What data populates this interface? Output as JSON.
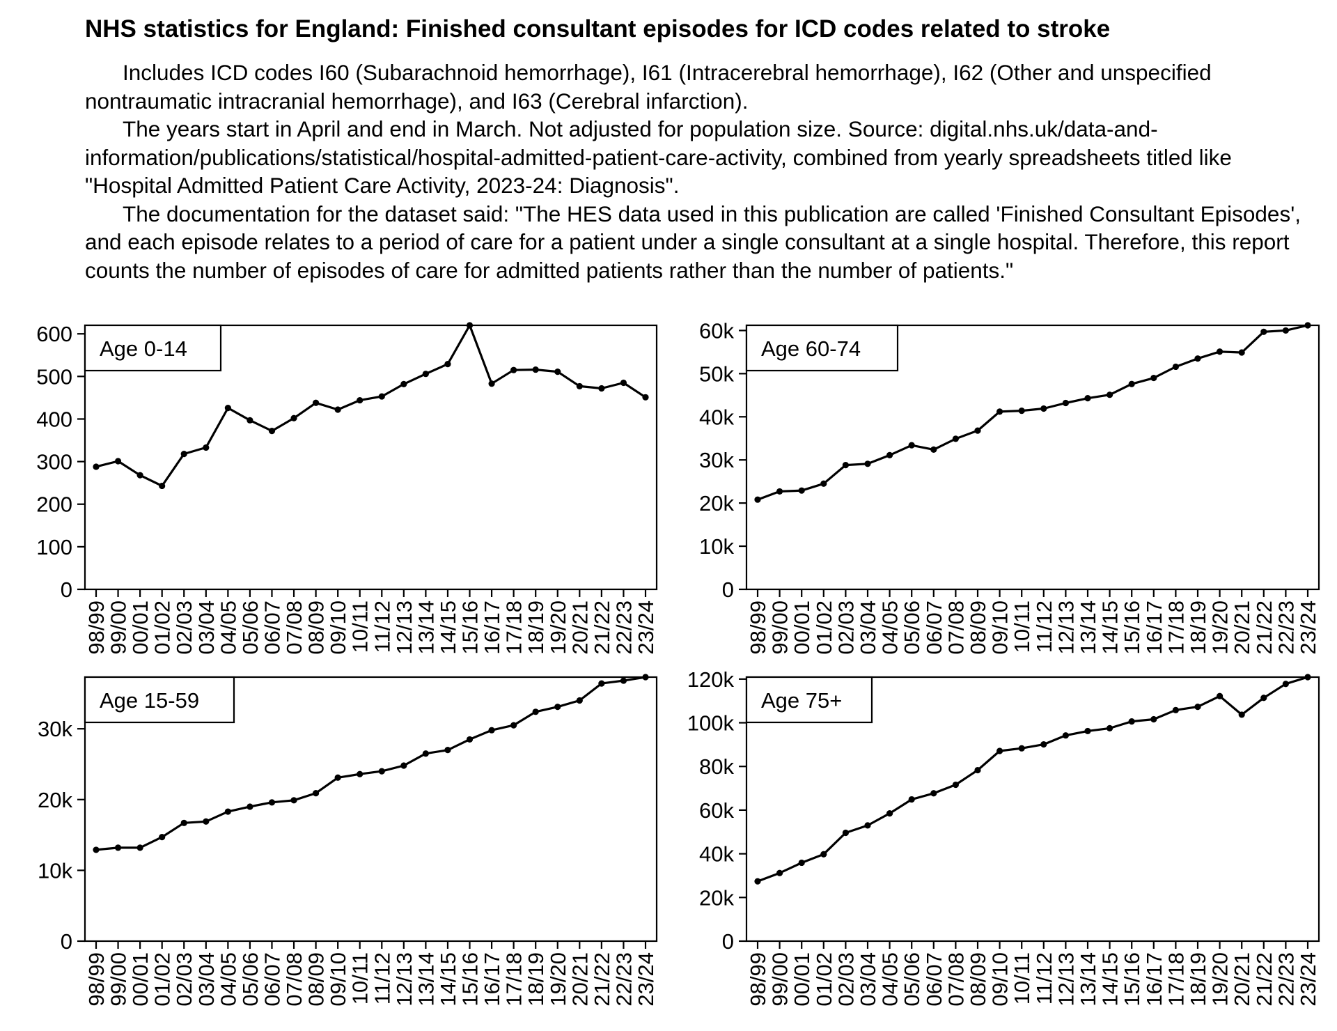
{
  "title": "NHS statistics for England: Finished consultant episodes for ICD codes related to stroke",
  "description": [
    "Includes ICD codes I60 (Subarachnoid hemorrhage), I61 (Intracerebral hemorrhage), I62 (Other and unspecified nontraumatic intracranial hemorrhage), and I63 (Cerebral infarction).",
    "The years start in April and end in March. Not adjusted for population size. Source: digital.nhs.uk/data-and-information/publications/statistical/hospital-admitted-patient-care-activity, combined from yearly spreadsheets titled like \"Hospital Admitted Patient Care Activity, 2023-24: Diagnosis\".",
    "The documentation for the dataset said: \"The HES data used in this publication are called 'Finished Consultant Episodes', and each episode relates to a period of care for a patient under a single consultant at a single hospital. Therefore, this report counts the number of episodes of care for admitted patients rather than the number of patients.\""
  ],
  "chart_data": [
    {
      "type": "line",
      "title": "Age 0-14",
      "categories": [
        "98/99",
        "99/00",
        "00/01",
        "01/02",
        "02/03",
        "03/04",
        "04/05",
        "05/06",
        "06/07",
        "07/08",
        "08/09",
        "09/10",
        "10/11",
        "11/12",
        "12/13",
        "13/14",
        "14/15",
        "15/16",
        "16/17",
        "17/18",
        "18/19",
        "19/20",
        "20/21",
        "21/22",
        "22/23",
        "23/24"
      ],
      "values": [
        288,
        301,
        268,
        243,
        318,
        333,
        426,
        397,
        372,
        402,
        438,
        422,
        444,
        453,
        482,
        506,
        529,
        620,
        483,
        515,
        516,
        511,
        477,
        472,
        485,
        451
      ],
      "ylim": [
        0,
        620
      ],
      "yticks": [
        0,
        100,
        200,
        300,
        400,
        500,
        600
      ],
      "ytick_labels": [
        "0",
        "100",
        "200",
        "300",
        "400",
        "500",
        "600"
      ],
      "legend_position": "top-left"
    },
    {
      "type": "line",
      "title": "Age 60-74",
      "categories": [
        "98/99",
        "99/00",
        "00/01",
        "01/02",
        "02/03",
        "03/04",
        "04/05",
        "05/06",
        "06/07",
        "07/08",
        "08/09",
        "09/10",
        "10/11",
        "11/12",
        "12/13",
        "13/14",
        "14/15",
        "15/16",
        "16/17",
        "17/18",
        "18/19",
        "19/20",
        "20/21",
        "21/22",
        "22/23",
        "23/24"
      ],
      "values": [
        20800,
        22700,
        22900,
        24500,
        28800,
        29100,
        31100,
        33400,
        32400,
        34900,
        36800,
        41200,
        41400,
        41900,
        43200,
        44300,
        45100,
        47600,
        49000,
        51600,
        53500,
        55100,
        54900,
        59700,
        60000,
        61200
      ],
      "ylim": [
        0,
        61200
      ],
      "yticks": [
        0,
        10000,
        20000,
        30000,
        40000,
        50000,
        60000
      ],
      "ytick_labels": [
        "0",
        "10k",
        "20k",
        "30k",
        "40k",
        "50k",
        "60k"
      ],
      "legend_position": "top-left"
    },
    {
      "type": "line",
      "title": "Age 15-59",
      "categories": [
        "98/99",
        "99/00",
        "00/01",
        "01/02",
        "02/03",
        "03/04",
        "04/05",
        "05/06",
        "06/07",
        "07/08",
        "08/09",
        "09/10",
        "10/11",
        "11/12",
        "12/13",
        "13/14",
        "14/15",
        "15/16",
        "16/17",
        "17/18",
        "18/19",
        "19/20",
        "20/21",
        "21/22",
        "22/23",
        "23/24"
      ],
      "values": [
        12900,
        13200,
        13200,
        14700,
        16700,
        16900,
        18300,
        19000,
        19600,
        19900,
        20900,
        23100,
        23600,
        24000,
        24800,
        26500,
        27000,
        28500,
        29800,
        30500,
        32400,
        33100,
        34000,
        36400,
        36800,
        37300
      ],
      "ylim": [
        0,
        37300
      ],
      "yticks": [
        0,
        10000,
        20000,
        30000
      ],
      "ytick_labels": [
        "0",
        "10k",
        "20k",
        "30k"
      ],
      "legend_position": "top-left"
    },
    {
      "type": "line",
      "title": "Age 75+",
      "categories": [
        "98/99",
        "99/00",
        "00/01",
        "01/02",
        "02/03",
        "03/04",
        "04/05",
        "05/06",
        "06/07",
        "07/08",
        "08/09",
        "09/10",
        "10/11",
        "11/12",
        "12/13",
        "13/14",
        "14/15",
        "15/16",
        "16/17",
        "17/18",
        "18/19",
        "19/20",
        "20/21",
        "21/22",
        "22/23",
        "23/24"
      ],
      "values": [
        27400,
        31200,
        35900,
        39800,
        49600,
        53000,
        58500,
        64900,
        67700,
        71600,
        78300,
        87100,
        88300,
        90100,
        94200,
        96200,
        97500,
        100600,
        101600,
        105800,
        107300,
        112200,
        103700,
        111400,
        117800,
        120900
      ],
      "ylim": [
        0,
        120900
      ],
      "yticks": [
        0,
        20000,
        40000,
        60000,
        80000,
        100000,
        120000
      ],
      "ytick_labels": [
        "0",
        "20k",
        "40k",
        "60k",
        "80k",
        "100k",
        "120k"
      ],
      "legend_position": "top-left"
    }
  ]
}
